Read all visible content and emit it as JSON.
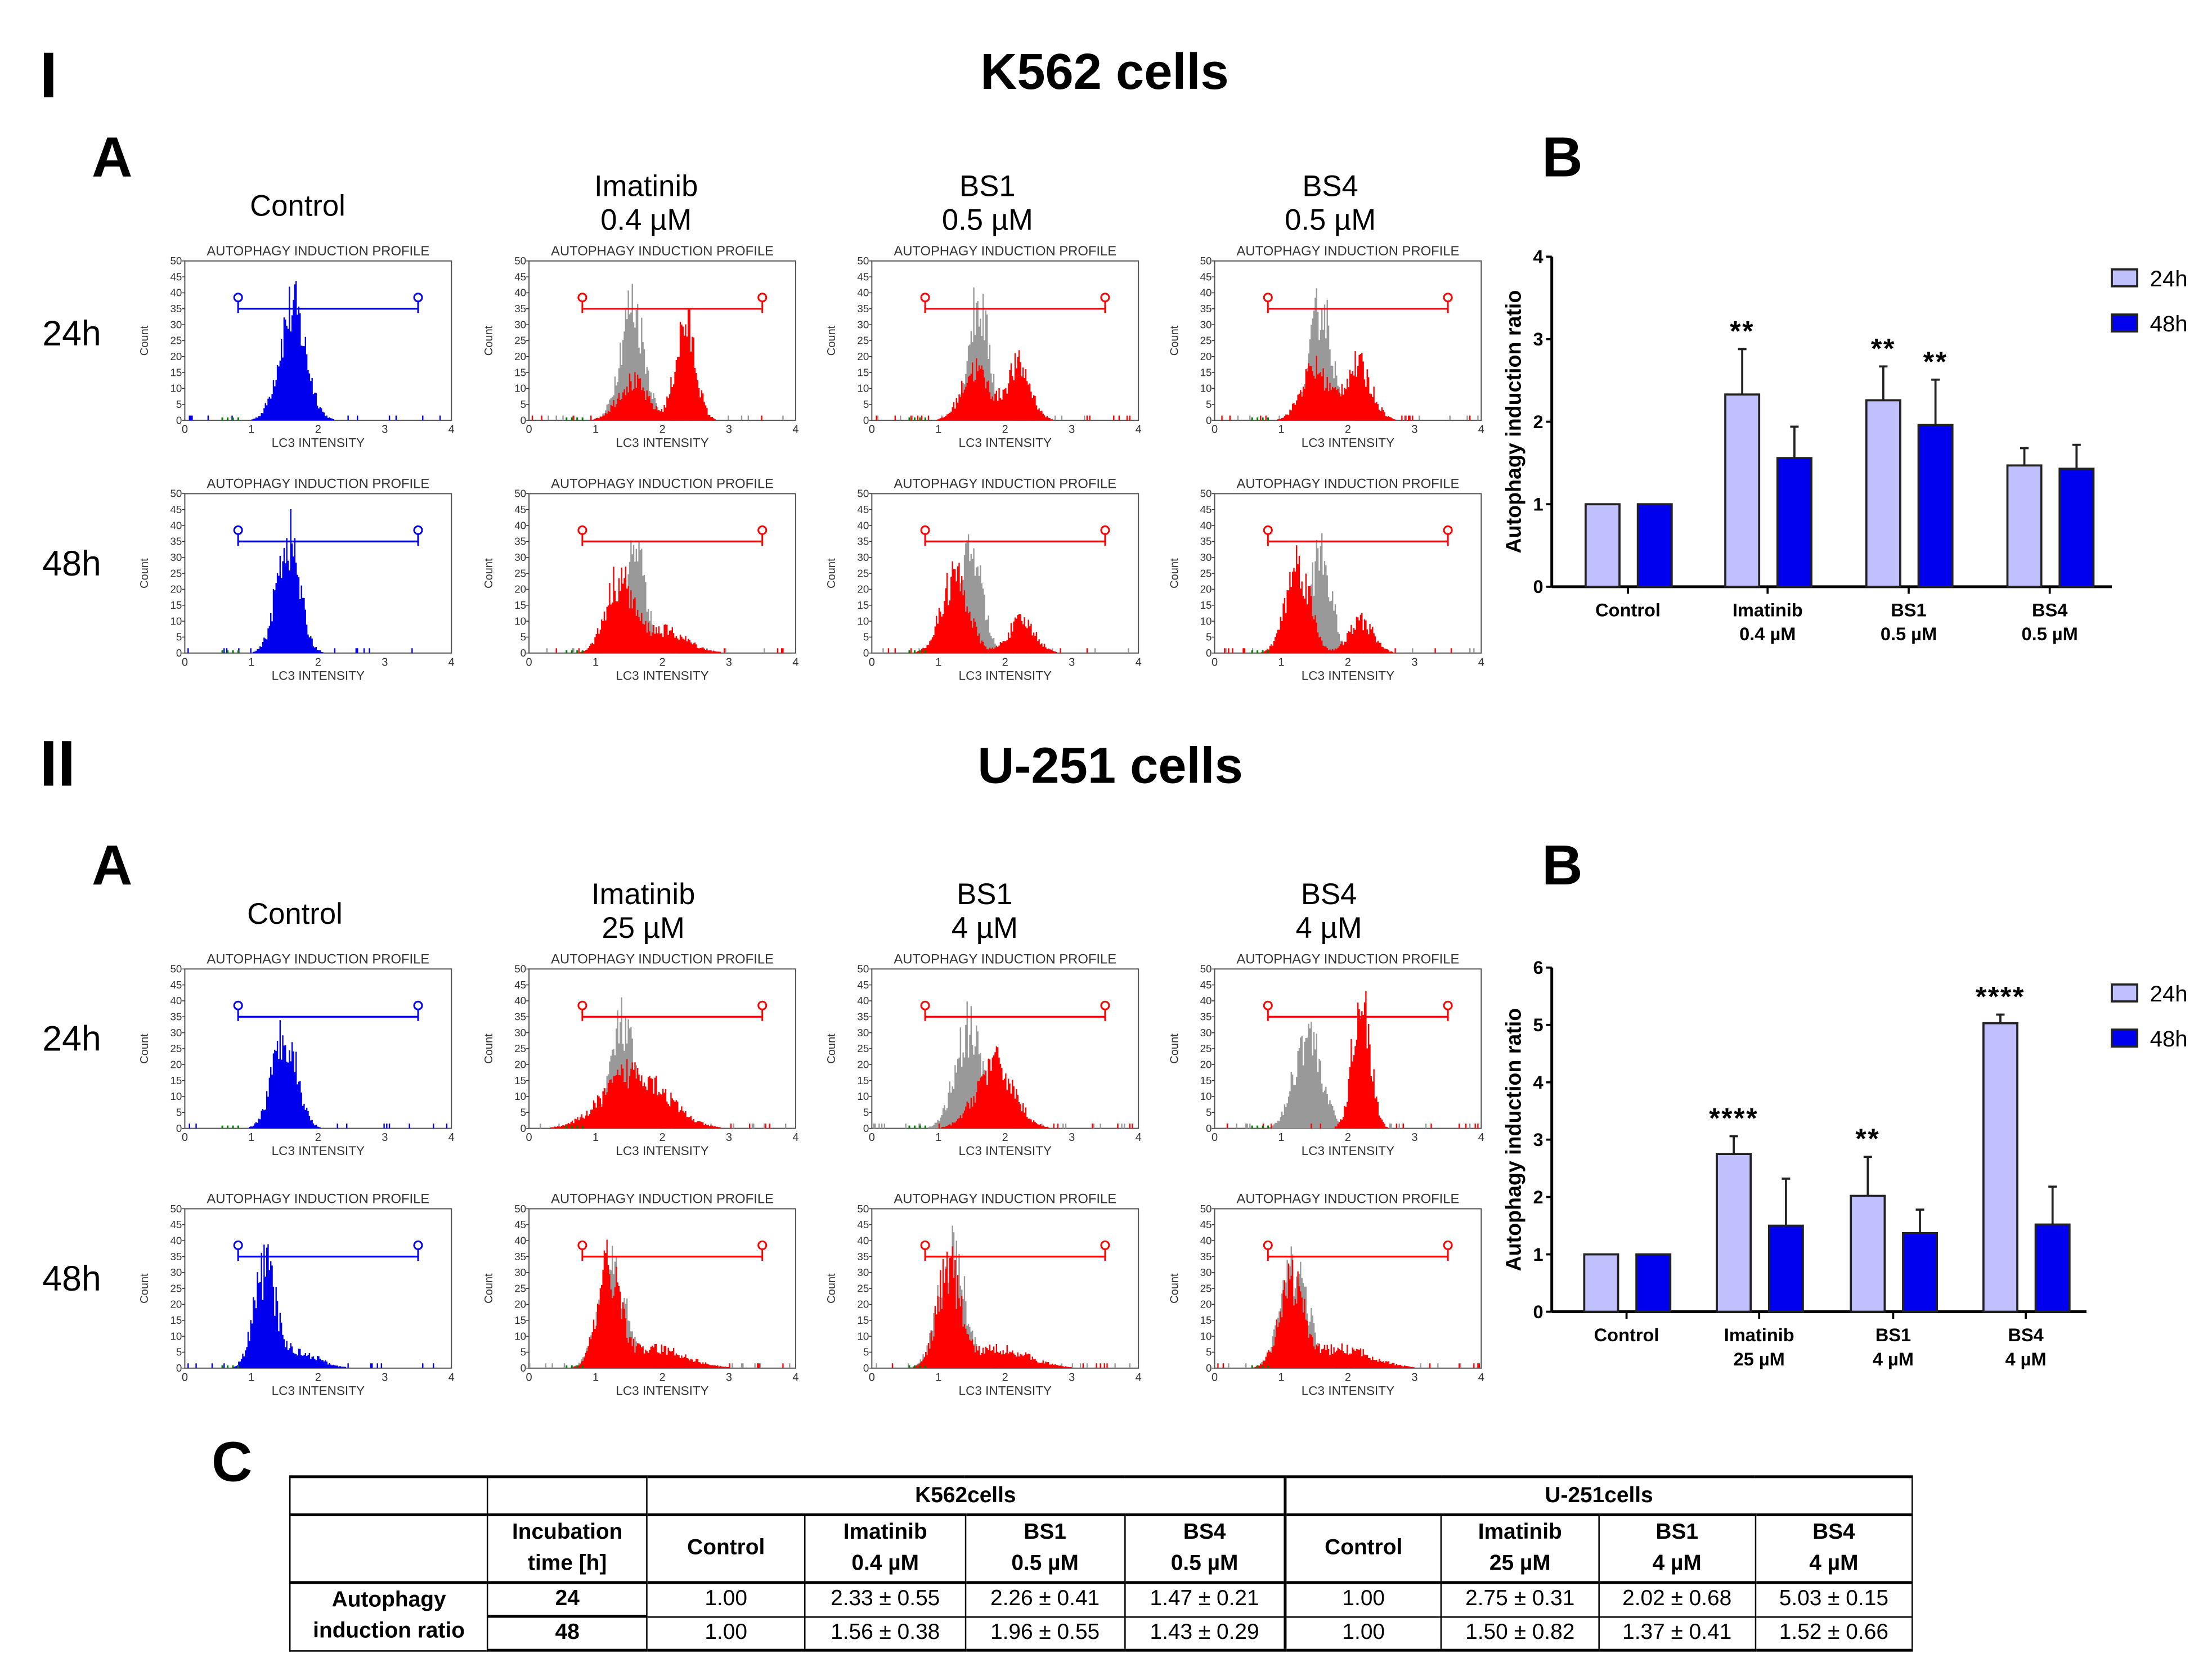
{
  "sections": [
    {
      "numeral": "I",
      "title": "K562 cells",
      "panel_a": "A",
      "panel_b": "B",
      "columns": [
        {
          "line1": "Control",
          "line2": ""
        },
        {
          "line1": "Imatinib",
          "line2": "0.4 µM"
        },
        {
          "line1": "BS1",
          "line2": "0.5 µM"
        },
        {
          "line1": "BS4",
          "line2": "0.5 µM"
        }
      ],
      "rows": [
        "24h",
        "48h"
      ]
    },
    {
      "numeral": "II",
      "title": "U-251 cells",
      "panel_a": "A",
      "panel_b": "B",
      "columns": [
        {
          "line1": "Control",
          "line2": ""
        },
        {
          "line1": "Imatinib",
          "line2": "25 µM"
        },
        {
          "line1": "BS1",
          "line2": "4 µM"
        },
        {
          "line1": "BS4",
          "line2": "4 µM"
        }
      ],
      "rows": [
        "24h",
        "48h"
      ]
    }
  ],
  "histogram_common": {
    "title": "AUTOPHAGY INDUCTION PROFILE",
    "ylabel": "Count",
    "xlabel": "LC3 INTENSITY",
    "xticks": [
      "0",
      "1",
      "2",
      "3",
      "4"
    ],
    "yticks": [
      "0",
      "5",
      "10",
      "15",
      "20",
      "25",
      "30",
      "35",
      "40",
      "45",
      "50"
    ],
    "xlim": [
      0,
      4
    ],
    "ylim": [
      0,
      50
    ],
    "gate_range": [
      0.8,
      3.5
    ]
  },
  "colors": {
    "control": "#0000ee",
    "treated": "#ff0000",
    "overlay": "#999999",
    "low": "#008000",
    "bar24": "#c0c0ff",
    "bar48": "#0000ee"
  },
  "chart_data": [
    {
      "type": "bar",
      "title": "K562 cells",
      "panel": "B",
      "ylabel": "Autophagy induction ratio",
      "ylim": [
        0,
        4
      ],
      "yticks": [
        "0",
        "1",
        "2",
        "3",
        "4"
      ],
      "categories": [
        {
          "line1": "Control",
          "line2": ""
        },
        {
          "line1": "Imatinib",
          "line2": "0.4 µM"
        },
        {
          "line1": "BS1",
          "line2": "0.5 µM"
        },
        {
          "line1": "BS4",
          "line2": "0.5 µM"
        }
      ],
      "series": [
        {
          "name": "24h",
          "values": [
            1.0,
            2.33,
            2.26,
            1.47
          ],
          "errors": [
            0,
            0.55,
            0.41,
            0.21
          ],
          "significance": [
            "",
            "**",
            "**",
            ""
          ]
        },
        {
          "name": "48h",
          "values": [
            1.0,
            1.56,
            1.96,
            1.43
          ],
          "errors": [
            0,
            0.38,
            0.55,
            0.29
          ],
          "significance": [
            "",
            "",
            "**",
            ""
          ]
        }
      ],
      "legend": "top-right"
    },
    {
      "type": "bar",
      "title": "U-251 cells",
      "panel": "B",
      "ylabel": "Autophagy induction ratio",
      "ylim": [
        0,
        6
      ],
      "yticks": [
        "0",
        "1",
        "2",
        "3",
        "4",
        "5",
        "6"
      ],
      "categories": [
        {
          "line1": "Control",
          "line2": ""
        },
        {
          "line1": "Imatinib",
          "line2": "25 µM"
        },
        {
          "line1": "BS1",
          "line2": "4 µM"
        },
        {
          "line1": "BS4",
          "line2": "4 µM"
        }
      ],
      "series": [
        {
          "name": "24h",
          "values": [
            1.0,
            2.75,
            2.02,
            5.03
          ],
          "errors": [
            0,
            0.31,
            0.68,
            0.15
          ],
          "significance": [
            "",
            "****",
            "**",
            "****"
          ]
        },
        {
          "name": "48h",
          "values": [
            1.0,
            1.5,
            1.37,
            1.52
          ],
          "errors": [
            0,
            0.82,
            0.41,
            0.66
          ],
          "significance": [
            "",
            "",
            "",
            ""
          ]
        }
      ],
      "legend": "top-right"
    },
    {
      "type": "histogram",
      "section": 0,
      "row": 0,
      "col": 0,
      "main": [
        {
          "mean": 1.62,
          "sd": 0.2,
          "peak": 35
        }
      ],
      "overlay": []
    },
    {
      "type": "histogram",
      "section": 0,
      "row": 0,
      "col": 1,
      "main": [
        {
          "mean": 2.35,
          "sd": 0.15,
          "peak": 30
        },
        {
          "mean": 1.55,
          "sd": 0.22,
          "peak": 12
        }
      ],
      "overlay": [
        {
          "mean": 1.55,
          "sd": 0.18,
          "peak": 36
        }
      ]
    },
    {
      "type": "histogram",
      "section": 0,
      "row": 0,
      "col": 2,
      "main": [
        {
          "mean": 1.55,
          "sd": 0.2,
          "peak": 16
        },
        {
          "mean": 2.2,
          "sd": 0.18,
          "peak": 17
        }
      ],
      "overlay": [
        {
          "mean": 1.6,
          "sd": 0.16,
          "peak": 36
        }
      ]
    },
    {
      "type": "histogram",
      "section": 0,
      "row": 0,
      "col": 3,
      "main": [
        {
          "mean": 1.5,
          "sd": 0.2,
          "peak": 16
        },
        {
          "mean": 2.15,
          "sd": 0.2,
          "peak": 17
        }
      ],
      "overlay": [
        {
          "mean": 1.6,
          "sd": 0.16,
          "peak": 36
        }
      ]
    },
    {
      "type": "histogram",
      "section": 0,
      "row": 1,
      "col": 0,
      "main": [
        {
          "mean": 1.55,
          "sd": 0.17,
          "peak": 36
        }
      ],
      "overlay": []
    },
    {
      "type": "histogram",
      "section": 0,
      "row": 1,
      "col": 1,
      "main": [
        {
          "mean": 1.35,
          "sd": 0.2,
          "peak": 22
        },
        {
          "mean": 2.0,
          "sd": 0.35,
          "peak": 7
        }
      ],
      "overlay": [
        {
          "mean": 1.6,
          "sd": 0.15,
          "peak": 35
        }
      ]
    },
    {
      "type": "histogram",
      "section": 0,
      "row": 1,
      "col": 2,
      "main": [
        {
          "mean": 1.25,
          "sd": 0.2,
          "peak": 24
        },
        {
          "mean": 2.25,
          "sd": 0.2,
          "peak": 10
        }
      ],
      "overlay": [
        {
          "mean": 1.5,
          "sd": 0.16,
          "peak": 32
        }
      ]
    },
    {
      "type": "histogram",
      "section": 0,
      "row": 1,
      "col": 3,
      "main": [
        {
          "mean": 1.25,
          "sd": 0.18,
          "peak": 28
        },
        {
          "mean": 2.2,
          "sd": 0.18,
          "peak": 10
        }
      ],
      "overlay": [
        {
          "mean": 1.6,
          "sd": 0.15,
          "peak": 32
        }
      ]
    },
    {
      "type": "histogram",
      "section": 1,
      "row": 0,
      "col": 0,
      "main": [
        {
          "mean": 1.5,
          "sd": 0.18,
          "peak": 30
        }
      ],
      "overlay": []
    },
    {
      "type": "histogram",
      "section": 1,
      "row": 0,
      "col": 1,
      "main": [
        {
          "mean": 1.6,
          "sd": 0.45,
          "peak": 18
        }
      ],
      "overlay": [
        {
          "mean": 1.4,
          "sd": 0.18,
          "peak": 32
        }
      ]
    },
    {
      "type": "histogram",
      "section": 1,
      "row": 0,
      "col": 2,
      "main": [
        {
          "mean": 1.85,
          "sd": 0.28,
          "peak": 20
        }
      ],
      "overlay": [
        {
          "mean": 1.45,
          "sd": 0.2,
          "peak": 31
        }
      ]
    },
    {
      "type": "histogram",
      "section": 1,
      "row": 0,
      "col": 3,
      "main": [
        {
          "mean": 2.2,
          "sd": 0.13,
          "peak": 42
        }
      ],
      "overlay": [
        {
          "mean": 1.4,
          "sd": 0.2,
          "peak": 30
        }
      ]
    },
    {
      "type": "histogram",
      "section": 1,
      "row": 1,
      "col": 0,
      "main": [
        {
          "mean": 1.2,
          "sd": 0.16,
          "peak": 30
        },
        {
          "mean": 1.7,
          "sd": 0.3,
          "peak": 5
        }
      ],
      "overlay": []
    },
    {
      "type": "histogram",
      "section": 1,
      "row": 1,
      "col": 1,
      "main": [
        {
          "mean": 1.2,
          "sd": 0.17,
          "peak": 30
        },
        {
          "mean": 1.9,
          "sd": 0.45,
          "peak": 6
        }
      ],
      "overlay": [
        {
          "mean": 1.25,
          "sd": 0.2,
          "peak": 33
        }
      ]
    },
    {
      "type": "histogram",
      "section": 1,
      "row": 1,
      "col": 2,
      "main": [
        {
          "mean": 1.15,
          "sd": 0.17,
          "peak": 30
        },
        {
          "mean": 1.9,
          "sd": 0.45,
          "peak": 6
        }
      ],
      "overlay": [
        {
          "mean": 1.2,
          "sd": 0.2,
          "peak": 35
        }
      ]
    },
    {
      "type": "histogram",
      "section": 1,
      "row": 1,
      "col": 3,
      "main": [
        {
          "mean": 1.15,
          "sd": 0.18,
          "peak": 26
        },
        {
          "mean": 1.9,
          "sd": 0.45,
          "peak": 6
        }
      ],
      "overlay": [
        {
          "mean": 1.2,
          "sd": 0.2,
          "peak": 32
        }
      ]
    }
  ],
  "table": {
    "letter": "C",
    "groups": [
      "K562cells",
      "U-251cells"
    ],
    "incubation_header": [
      "Incubation",
      "time [h]"
    ],
    "columns": [
      [
        "Control",
        ""
      ],
      [
        "Imatinib",
        "0.4 µM"
      ],
      [
        "BS1",
        "0.5 µM"
      ],
      [
        "BS4",
        "0.5 µM"
      ],
      [
        "Control",
        ""
      ],
      [
        "Imatinib",
        "25 µM"
      ],
      [
        "BS1",
        "4 µM"
      ],
      [
        "BS4",
        "4 µM"
      ]
    ],
    "row_label": [
      "Autophagy",
      "induction ratio"
    ],
    "rows": [
      {
        "time": "24",
        "values": [
          "1.00",
          "2.33 ± 0.55",
          "2.26 ± 0.41",
          "1.47 ± 0.21",
          "1.00",
          "2.75 ± 0.31",
          "2.02 ± 0.68",
          "5.03 ± 0.15"
        ]
      },
      {
        "time": "48",
        "values": [
          "1.00",
          "1.56 ± 0.38",
          "1.96 ± 0.55",
          "1.43 ± 0.29",
          "1.00",
          "1.50 ± 0.82",
          "1.37 ± 0.41",
          "1.52 ± 0.66"
        ]
      }
    ]
  }
}
